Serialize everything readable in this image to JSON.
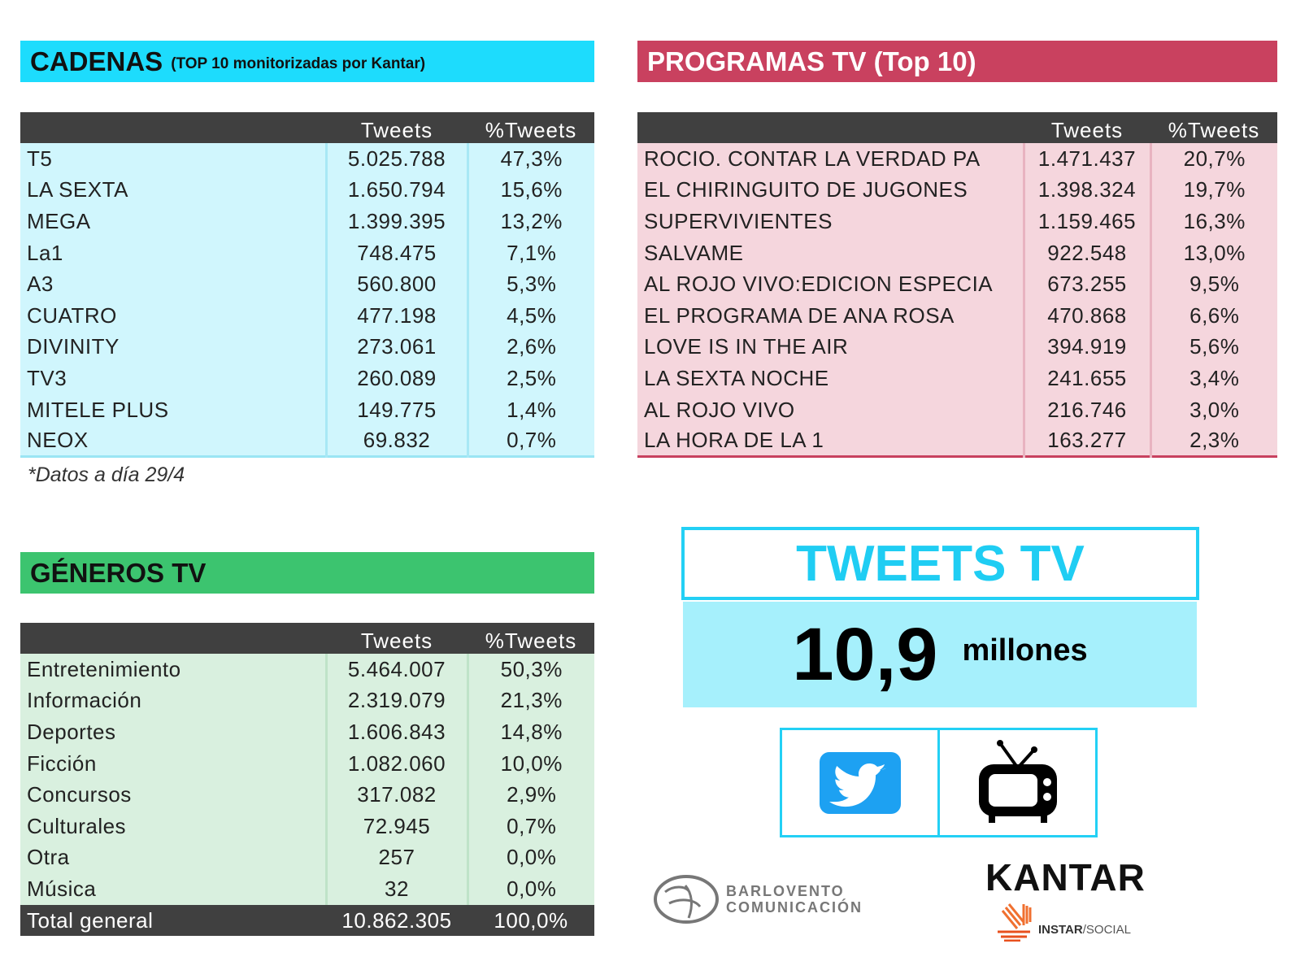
{
  "cadenas": {
    "title": "CADENAS",
    "subtitle": "(TOP 10 monitorizadas por Kantar)",
    "col_tweets": "Tweets",
    "col_pct": "%Tweets",
    "rows": [
      [
        "T5",
        "5.025.788",
        "47,3%"
      ],
      [
        "LA SEXTA",
        "1.650.794",
        "15,6%"
      ],
      [
        "MEGA",
        "1.399.395",
        "13,2%"
      ],
      [
        "La1",
        "748.475",
        "7,1%"
      ],
      [
        "A3",
        "560.800",
        "5,3%"
      ],
      [
        "CUATRO",
        "477.198",
        "4,5%"
      ],
      [
        "DIVINITY",
        "273.061",
        "2,6%"
      ],
      [
        "TV3",
        "260.089",
        "2,5%"
      ],
      [
        "MITELE PLUS",
        "149.775",
        "1,4%"
      ],
      [
        "NEOX",
        "69.832",
        "0,7%"
      ]
    ],
    "note": "*Datos a día 29/4"
  },
  "programas": {
    "title": "PROGRAMAS TV (Top 10)",
    "col_tweets": "Tweets",
    "col_pct": "%Tweets",
    "rows": [
      [
        "ROCIO. CONTAR LA VERDAD PA",
        "1.471.437",
        "20,7%"
      ],
      [
        "EL CHIRINGUITO DE JUGONES",
        "1.398.324",
        "19,7%"
      ],
      [
        "SUPERVIVIENTES",
        "1.159.465",
        "16,3%"
      ],
      [
        "SALVAME",
        "922.548",
        "13,0%"
      ],
      [
        "AL ROJO VIVO:EDICION ESPECIA",
        "673.255",
        "9,5%"
      ],
      [
        "EL PROGRAMA DE ANA ROSA",
        "470.868",
        "6,6%"
      ],
      [
        "LOVE IS IN THE AIR",
        "394.919",
        "5,6%"
      ],
      [
        "LA SEXTA NOCHE",
        "241.655",
        "3,4%"
      ],
      [
        "AL ROJO VIVO",
        "216.746",
        "3,0%"
      ],
      [
        "LA HORA DE LA 1",
        "163.277",
        "2,3%"
      ]
    ]
  },
  "generos": {
    "title": "GÉNEROS TV",
    "col_tweets": "Tweets",
    "col_pct": "%Tweets",
    "rows": [
      [
        "Entretenimiento",
        "5.464.007",
        "50,3%"
      ],
      [
        "Información",
        "2.319.079",
        "21,3%"
      ],
      [
        "Deportes",
        "1.606.843",
        "14,8%"
      ],
      [
        "Ficción",
        "1.082.060",
        "10,0%"
      ],
      [
        "Concursos",
        "317.082",
        "2,9%"
      ],
      [
        "Culturales",
        "72.945",
        "0,7%"
      ],
      [
        "Otra",
        "257",
        "0,0%"
      ],
      [
        "Música",
        "32",
        "0,0%"
      ]
    ],
    "total": [
      "Total general",
      "10.862.305",
      "100,0%"
    ]
  },
  "summary": {
    "title": "TWEETS TV",
    "value": "10,9",
    "unit": "millones"
  },
  "logos": {
    "barlovento_line1": "BARLOVENTO",
    "barlovento_line2": "COMUNICACIÓN",
    "kantar": "KANTAR",
    "instar": "INSTAR",
    "social": "/SOCIAL"
  },
  "colors": {
    "cadenas": "#1ddcfd",
    "programas": "#c9415f",
    "generos": "#3cc46f",
    "header_dark": "#404040",
    "twitter": "#1da1f2"
  },
  "icons": [
    "twitter-icon",
    "tv-icon"
  ]
}
